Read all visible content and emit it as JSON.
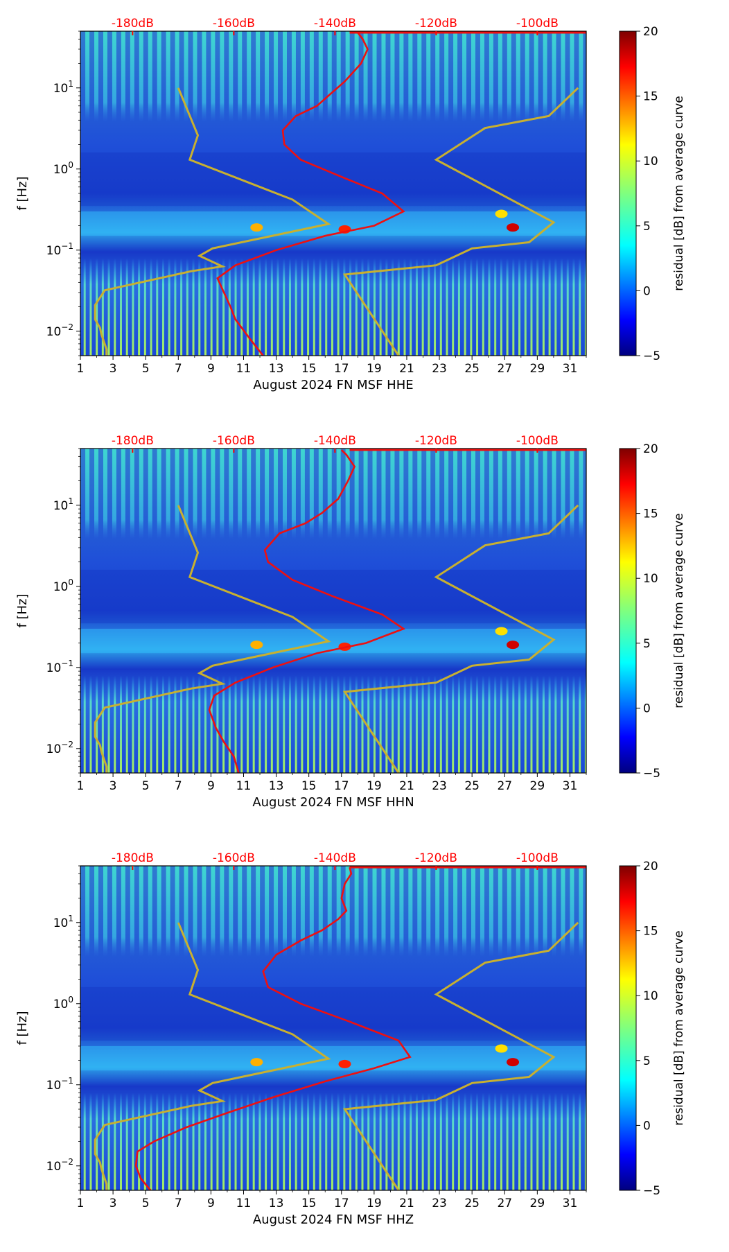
{
  "chart_data": [
    {
      "type": "heatmap",
      "component": "HHE",
      "xlabel": "August 2024 FN MSF  HHE",
      "ylabel": "f [Hz]",
      "x_ticks": [
        "1",
        "3",
        "5",
        "7",
        "9",
        "11",
        "13",
        "15",
        "17",
        "19",
        "21",
        "23",
        "25",
        "27",
        "29",
        "31"
      ],
      "xlim": [
        1,
        32
      ],
      "ylim": [
        0.005,
        50
      ],
      "yscale": "log",
      "y_ticks": [
        {
          "base": "10",
          "exp": "1",
          "value": 10
        },
        {
          "base": "10",
          "exp": "0",
          "value": 1
        },
        {
          "base": "10",
          "exp": "-1",
          "value": 0.1
        },
        {
          "base": "10",
          "exp": "-2",
          "value": 0.01
        }
      ],
      "db_scale_labels": [
        "-180dB",
        "-160dB",
        "-140dB",
        "-120dB",
        "-100dB"
      ],
      "db_scale_day_positions": [
        4.2,
        10.4,
        16.6,
        22.8,
        29.0
      ],
      "colorbar": {
        "label": "residual [dB] from average curve",
        "ticks": [
          "20",
          "15",
          "10",
          "5",
          "0",
          "−5"
        ],
        "min": -5,
        "max": 20
      },
      "noise_models": {
        "low": [
          [
            2.6,
            0.005
          ],
          [
            2.6,
            0.006
          ],
          [
            2.3,
            0.009
          ],
          [
            2.2,
            0.011
          ],
          [
            1.9,
            0.014
          ],
          [
            1.9,
            0.021
          ],
          [
            2.5,
            0.032
          ],
          [
            7.8,
            0.055
          ],
          [
            9.7,
            0.063
          ],
          [
            8.3,
            0.085
          ],
          [
            9.1,
            0.105
          ],
          [
            16.2,
            0.21
          ],
          [
            14,
            0.42
          ],
          [
            7.7,
            1.3
          ],
          [
            8.2,
            2.6
          ],
          [
            7,
            10
          ]
        ],
        "high": [
          [
            20.5,
            0.005
          ],
          [
            17.2,
            0.05
          ],
          [
            22.8,
            0.065
          ],
          [
            25,
            0.105
          ],
          [
            28.5,
            0.125
          ],
          [
            30,
            0.22
          ],
          [
            22.8,
            1.3
          ],
          [
            25.8,
            3.2
          ],
          [
            29.7,
            4.5
          ],
          [
            31.5,
            10
          ]
        ]
      },
      "mean_curve": [
        [
          12.2,
          0.005
        ],
        [
          11.4,
          0.008
        ],
        [
          10.5,
          0.014
        ],
        [
          10.2,
          0.02
        ],
        [
          9.8,
          0.03
        ],
        [
          9.4,
          0.045
        ],
        [
          10.5,
          0.065
        ],
        [
          13,
          0.1
        ],
        [
          16,
          0.15
        ],
        [
          19,
          0.2
        ],
        [
          20.8,
          0.3
        ],
        [
          19.5,
          0.5
        ],
        [
          17,
          0.8
        ],
        [
          14.5,
          1.3
        ],
        [
          13.5,
          2
        ],
        [
          13.4,
          3
        ],
        [
          14.2,
          4.5
        ],
        [
          15.5,
          6
        ],
        [
          16.2,
          8
        ],
        [
          17.2,
          12
        ],
        [
          18.2,
          20
        ],
        [
          18.6,
          30
        ],
        [
          18.3,
          40
        ],
        [
          18.0,
          48
        ]
      ]
    },
    {
      "type": "heatmap",
      "component": "HHN",
      "xlabel": "August 2024 FN MSF  HHN",
      "ylabel": "f [Hz]",
      "x_ticks": [
        "1",
        "3",
        "5",
        "7",
        "9",
        "11",
        "13",
        "15",
        "17",
        "19",
        "21",
        "23",
        "25",
        "27",
        "29",
        "31"
      ],
      "xlim": [
        1,
        32
      ],
      "ylim": [
        0.005,
        50
      ],
      "yscale": "log",
      "y_ticks": [
        {
          "base": "10",
          "exp": "1",
          "value": 10
        },
        {
          "base": "10",
          "exp": "0",
          "value": 1
        },
        {
          "base": "10",
          "exp": "-1",
          "value": 0.1
        },
        {
          "base": "10",
          "exp": "-2",
          "value": 0.01
        }
      ],
      "db_scale_labels": [
        "-180dB",
        "-160dB",
        "-140dB",
        "-120dB",
        "-100dB"
      ],
      "db_scale_day_positions": [
        4.2,
        10.4,
        16.6,
        22.8,
        29.0
      ],
      "colorbar": {
        "label": "residual [dB] from average curve",
        "ticks": [
          "20",
          "15",
          "10",
          "5",
          "0",
          "−5"
        ],
        "min": -5,
        "max": 20
      },
      "noise_models": {
        "low": [
          [
            2.6,
            0.005
          ],
          [
            2.6,
            0.006
          ],
          [
            2.3,
            0.009
          ],
          [
            2.2,
            0.011
          ],
          [
            1.9,
            0.014
          ],
          [
            1.9,
            0.021
          ],
          [
            2.5,
            0.032
          ],
          [
            7.8,
            0.055
          ],
          [
            9.7,
            0.063
          ],
          [
            8.3,
            0.085
          ],
          [
            9.1,
            0.105
          ],
          [
            16.2,
            0.21
          ],
          [
            14,
            0.42
          ],
          [
            7.7,
            1.3
          ],
          [
            8.2,
            2.6
          ],
          [
            7,
            10
          ]
        ],
        "high": [
          [
            20.5,
            0.005
          ],
          [
            17.2,
            0.05
          ],
          [
            22.8,
            0.065
          ],
          [
            25,
            0.105
          ],
          [
            28.5,
            0.125
          ],
          [
            30,
            0.22
          ],
          [
            22.8,
            1.3
          ],
          [
            25.8,
            3.2
          ],
          [
            29.7,
            4.5
          ],
          [
            31.5,
            10
          ]
        ]
      },
      "mean_curve": [
        [
          10.7,
          0.005
        ],
        [
          10.4,
          0.008
        ],
        [
          9.8,
          0.012
        ],
        [
          9.3,
          0.018
        ],
        [
          8.9,
          0.03
        ],
        [
          9.2,
          0.045
        ],
        [
          10.5,
          0.065
        ],
        [
          12.8,
          0.1
        ],
        [
          15.5,
          0.15
        ],
        [
          18.5,
          0.2
        ],
        [
          20.8,
          0.3
        ],
        [
          19.5,
          0.45
        ],
        [
          16.5,
          0.75
        ],
        [
          14,
          1.2
        ],
        [
          12.5,
          2
        ],
        [
          12.3,
          2.8
        ],
        [
          13.2,
          4.5
        ],
        [
          14.8,
          6
        ],
        [
          15.8,
          8
        ],
        [
          16.8,
          12
        ],
        [
          17.4,
          20
        ],
        [
          17.8,
          30
        ],
        [
          17.3,
          42
        ],
        [
          17.0,
          48
        ]
      ]
    },
    {
      "type": "heatmap",
      "component": "HHZ",
      "xlabel": "August 2024 FN MSF  HHZ",
      "ylabel": "f [Hz]",
      "x_ticks": [
        "1",
        "3",
        "5",
        "7",
        "9",
        "11",
        "13",
        "15",
        "17",
        "19",
        "21",
        "23",
        "25",
        "27",
        "29",
        "31"
      ],
      "xlim": [
        1,
        32
      ],
      "ylim": [
        0.005,
        50
      ],
      "yscale": "log",
      "y_ticks": [
        {
          "base": "10",
          "exp": "1",
          "value": 10
        },
        {
          "base": "10",
          "exp": "0",
          "value": 1
        },
        {
          "base": "10",
          "exp": "-1",
          "value": 0.1
        },
        {
          "base": "10",
          "exp": "-2",
          "value": 0.01
        }
      ],
      "db_scale_labels": [
        "-180dB",
        "-160dB",
        "-140dB",
        "-120dB",
        "-100dB"
      ],
      "db_scale_day_positions": [
        4.2,
        10.4,
        16.6,
        22.8,
        29.0
      ],
      "colorbar": {
        "label": "residual [dB] from average curve",
        "ticks": [
          "20",
          "15",
          "10",
          "5",
          "0",
          "−5"
        ],
        "min": -5,
        "max": 20
      },
      "noise_models": {
        "low": [
          [
            2.6,
            0.005
          ],
          [
            2.6,
            0.006
          ],
          [
            2.3,
            0.009
          ],
          [
            2.2,
            0.011
          ],
          [
            1.9,
            0.014
          ],
          [
            1.9,
            0.021
          ],
          [
            2.5,
            0.032
          ],
          [
            7.8,
            0.055
          ],
          [
            9.7,
            0.063
          ],
          [
            8.3,
            0.085
          ],
          [
            9.1,
            0.105
          ],
          [
            16.2,
            0.21
          ],
          [
            14,
            0.42
          ],
          [
            7.7,
            1.3
          ],
          [
            8.2,
            2.6
          ],
          [
            7,
            10
          ]
        ],
        "high": [
          [
            20.5,
            0.005
          ],
          [
            17.2,
            0.05
          ],
          [
            22.8,
            0.065
          ],
          [
            25,
            0.105
          ],
          [
            28.5,
            0.125
          ],
          [
            30,
            0.22
          ],
          [
            22.8,
            1.3
          ],
          [
            25.8,
            3.2
          ],
          [
            29.7,
            4.5
          ],
          [
            31.5,
            10
          ]
        ]
      },
      "mean_curve": [
        [
          5.3,
          0.005
        ],
        [
          4.7,
          0.007
        ],
        [
          4.4,
          0.01
        ],
        [
          4.5,
          0.015
        ],
        [
          5.5,
          0.02
        ],
        [
          7.5,
          0.03
        ],
        [
          10,
          0.045
        ],
        [
          12.8,
          0.07
        ],
        [
          16,
          0.11
        ],
        [
          19,
          0.16
        ],
        [
          21.2,
          0.22
        ],
        [
          20.5,
          0.35
        ],
        [
          17.5,
          0.6
        ],
        [
          14.5,
          1
        ],
        [
          12.5,
          1.6
        ],
        [
          12.2,
          2.5
        ],
        [
          13.0,
          4
        ],
        [
          14.5,
          6
        ],
        [
          15.8,
          8
        ],
        [
          16.8,
          11
        ],
        [
          17.3,
          14
        ],
        [
          17.0,
          20
        ],
        [
          17.2,
          30
        ],
        [
          17.6,
          40
        ],
        [
          17.5,
          48
        ]
      ]
    }
  ]
}
